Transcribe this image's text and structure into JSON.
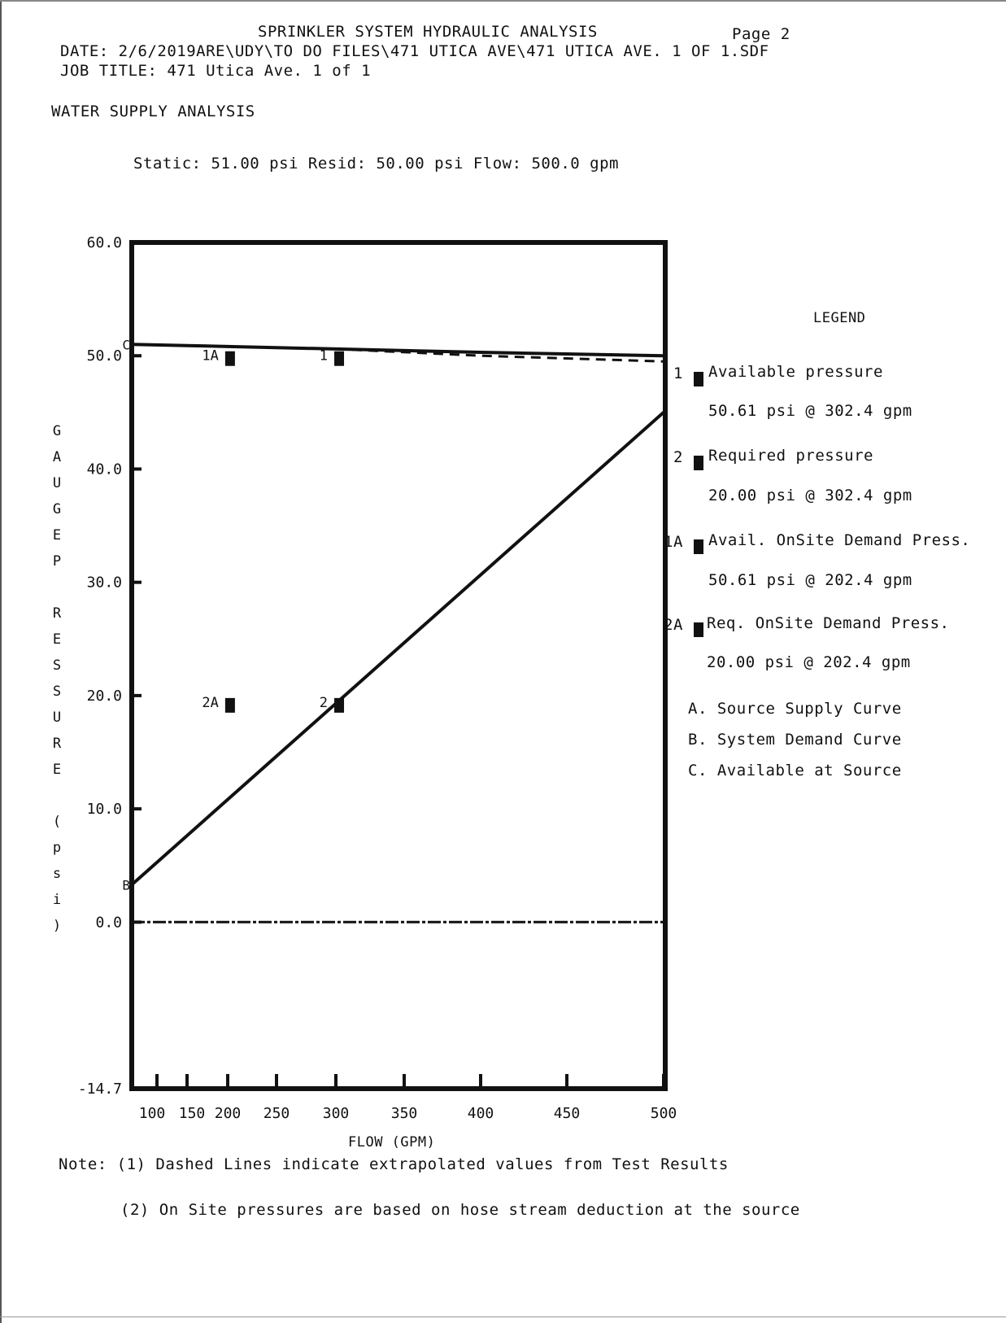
{
  "header": {
    "title": "SPRINKLER SYSTEM HYDRAULIC ANALYSIS",
    "page": "Page 2",
    "date_line": "DATE: 2/6/2019ARE\\UDY\\TO DO FILES\\471 UTICA AVE\\471 UTICA AVE. 1 OF 1.SDF",
    "job_title_line": "JOB TITLE: 471 Utica Ave. 1 of 1"
  },
  "section_title": "WATER SUPPLY ANALYSIS",
  "supply_summary": "Static: 51.00 psi Resid: 50.00 psi Flow: 500.0 gpm",
  "chart_data": {
    "type": "line",
    "xlabel": "FLOW (GPM)",
    "ylabel": "GAUGE PRESSURE (psi)",
    "xlim": [
      50,
      500
    ],
    "ylim": [
      -14.7,
      60.0
    ],
    "x_ticks": [
      100,
      150,
      200,
      250,
      300,
      350,
      400,
      450,
      500
    ],
    "x_tick_labels": [
      "100",
      "150",
      "200",
      "250",
      "300",
      "350",
      "400",
      "450",
      "500"
    ],
    "y_ticks": [
      -14.7,
      0.0,
      10.0,
      20.0,
      30.0,
      40.0,
      50.0,
      60.0
    ],
    "y_tick_labels": [
      "-14.7",
      "0.0",
      "10.0",
      "20.0",
      "30.0",
      "40.0",
      "50.0",
      "60.0"
    ],
    "grid": false,
    "legend_placement": "right",
    "series": [
      {
        "name": "A. Source Supply Curve",
        "style": "solid",
        "points": [
          [
            50,
            51.0
          ],
          [
            150,
            50.9
          ],
          [
            300,
            50.6
          ],
          [
            400,
            50.3
          ],
          [
            500,
            50.0
          ]
        ]
      },
      {
        "name": "A. Source Supply Curve",
        "style": "dashed",
        "points": [
          [
            300,
            50.6
          ],
          [
            400,
            50.0
          ],
          [
            500,
            49.5
          ]
        ]
      },
      {
        "name": "B. System Demand Curve",
        "style": "solid",
        "points": [
          [
            50,
            3.3
          ],
          [
            500,
            45.0
          ]
        ]
      },
      {
        "name": "0.0",
        "style": "dashed",
        "points": [
          [
            50,
            0.0
          ],
          [
            500,
            0.0
          ]
        ]
      }
    ],
    "markers": [
      {
        "label": "1",
        "x": 302.4,
        "y": 50.61,
        "legend_text": "Available pressure",
        "detail": "50.61 psi @ 302.4 gpm"
      },
      {
        "label": "2",
        "x": 302.4,
        "y": 20.0,
        "legend_text": "Required pressure",
        "detail": "20.00 psi @ 302.4 gpm"
      },
      {
        "label": "1A",
        "x": 202.4,
        "y": 50.61,
        "legend_text": "Avail. OnSite Demand Press.",
        "detail": "50.61 psi @ 202.4 gpm"
      },
      {
        "label": "2A",
        "x": 202.4,
        "y": 20.0,
        "legend_text": "Req. OnSite Demand Press.",
        "detail": "20.00 psi @ 202.4 gpm"
      }
    ],
    "curve_labels": [
      {
        "label": "C",
        "x": 50,
        "y": 51.0
      },
      {
        "label": "B",
        "x": 50,
        "y": 3.3
      }
    ],
    "legend_title": "LEGEND",
    "legend_curves": [
      "A. Source Supply Curve",
      "B. System Demand Curve",
      "C. Available at Source"
    ],
    "right_edge_labels": [
      "1",
      "2",
      "1A",
      "2A"
    ]
  },
  "notes": {
    "note1": "Note: (1) Dashed Lines indicate extrapolated values from Test Results",
    "note2": "(2) On Site pressures are based on hose stream deduction at the source"
  }
}
